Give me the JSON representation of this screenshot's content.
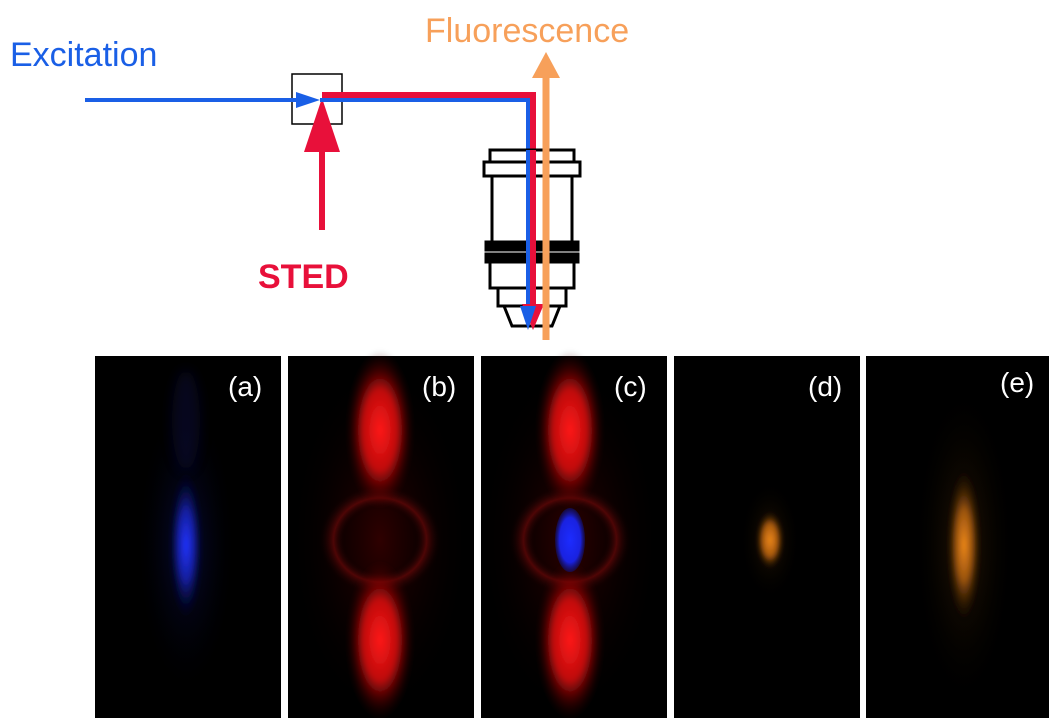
{
  "labels": {
    "excitation": "Excitation",
    "fluorescence": "Fluorescence",
    "sted": "STED"
  },
  "panels": [
    {
      "label": "(a)"
    },
    {
      "label": "(b)"
    },
    {
      "label": "(c)"
    },
    {
      "label": "(d)"
    },
    {
      "label": "(e)"
    }
  ],
  "colors": {
    "excitation": "#1a5fe6",
    "sted": "#e8103a",
    "fluorescence": "#f7a05a",
    "orange_spot": "#e87d10",
    "psf_red": "#ff1010",
    "psf_blue": "#1a2cff"
  }
}
